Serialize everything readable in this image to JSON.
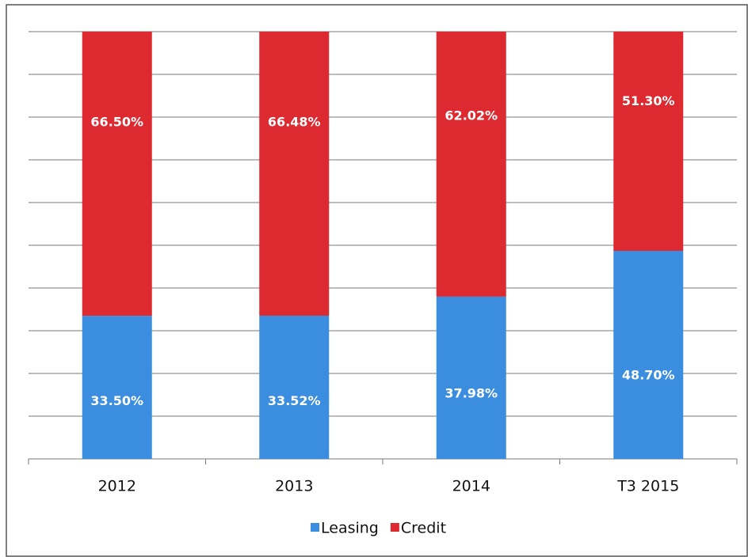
{
  "chart_data": {
    "type": "stacked-bar",
    "categories": [
      "2012",
      "2013",
      "2014",
      "T3 2015"
    ],
    "series": [
      {
        "name": "Leasing",
        "color": "#3b8de0",
        "values": [
          33.5,
          33.52,
          37.98,
          48.7
        ],
        "value_labels": [
          "33.50%",
          "33.52%",
          "37.98%",
          "48.70%"
        ]
      },
      {
        "name": "Credit",
        "color": "#dc2a30",
        "values": [
          66.5,
          66.48,
          62.02,
          51.3
        ],
        "value_labels": [
          "66.50%",
          "66.48%",
          "62.02%",
          "51.30%"
        ]
      }
    ],
    "ylim": [
      0,
      100
    ],
    "yticks": [
      0,
      10,
      20,
      30,
      40,
      50,
      60,
      70,
      80,
      90,
      100
    ],
    "grid": true,
    "legend": "bottom"
  }
}
